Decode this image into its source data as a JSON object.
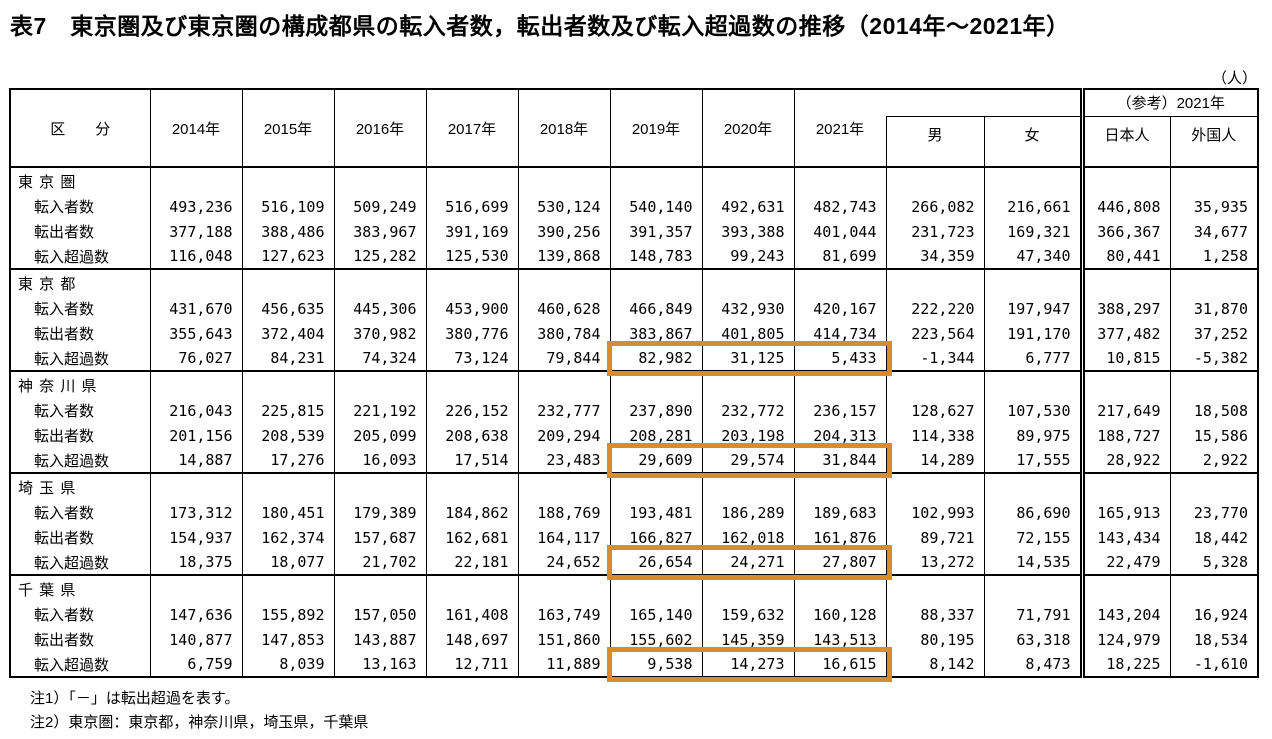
{
  "title": "表7　東京圏及び東京圏の構成都県の転入者数，転出者数及び転入超過数の推移（2014年～2021年）",
  "unit_label": "（人）",
  "highlight_color": "#DE8A2B",
  "table": {
    "col_headers": {
      "category": "区　　分",
      "years": [
        "2014年",
        "2015年",
        "2016年",
        "2017年",
        "2018年",
        "2019年",
        "2020年",
        "2021年"
      ],
      "male": "男",
      "female": "女",
      "reference_group": "（参考）2021年",
      "japanese": "日本人",
      "foreign": "外国人"
    },
    "groups": [
      {
        "name": "東 京 圏",
        "highlight": false,
        "rows": [
          {
            "label": "転入者数",
            "values": [
              "493,236",
              "516,109",
              "509,249",
              "516,699",
              "530,124",
              "540,140",
              "492,631",
              "482,743",
              "266,082",
              "216,661",
              "446,808",
              "35,935"
            ]
          },
          {
            "label": "転出者数",
            "values": [
              "377,188",
              "388,486",
              "383,967",
              "391,169",
              "390,256",
              "391,357",
              "393,388",
              "401,044",
              "231,723",
              "169,321",
              "366,367",
              "34,677"
            ]
          },
          {
            "label": "転入超過数",
            "values": [
              "116,048",
              "127,623",
              "125,282",
              "125,530",
              "139,868",
              "148,783",
              "99,243",
              "81,699",
              "34,359",
              "47,340",
              "80,441",
              "1,258"
            ]
          }
        ]
      },
      {
        "name": "東 京 都",
        "highlight": true,
        "rows": [
          {
            "label": "転入者数",
            "values": [
              "431,670",
              "456,635",
              "445,306",
              "453,900",
              "460,628",
              "466,849",
              "432,930",
              "420,167",
              "222,220",
              "197,947",
              "388,297",
              "31,870"
            ]
          },
          {
            "label": "転出者数",
            "values": [
              "355,643",
              "372,404",
              "370,982",
              "380,776",
              "380,784",
              "383,867",
              "401,805",
              "414,734",
              "223,564",
              "191,170",
              "377,482",
              "37,252"
            ]
          },
          {
            "label": "転入超過数",
            "values": [
              "76,027",
              "84,231",
              "74,324",
              "73,124",
              "79,844",
              "82,982",
              "31,125",
              "5,433",
              "-1,344",
              "6,777",
              "10,815",
              "-5,382"
            ]
          }
        ]
      },
      {
        "name": "神 奈 川 県",
        "highlight": true,
        "rows": [
          {
            "label": "転入者数",
            "values": [
              "216,043",
              "225,815",
              "221,192",
              "226,152",
              "232,777",
              "237,890",
              "232,772",
              "236,157",
              "128,627",
              "107,530",
              "217,649",
              "18,508"
            ]
          },
          {
            "label": "転出者数",
            "values": [
              "201,156",
              "208,539",
              "205,099",
              "208,638",
              "209,294",
              "208,281",
              "203,198",
              "204,313",
              "114,338",
              "89,975",
              "188,727",
              "15,586"
            ]
          },
          {
            "label": "転入超過数",
            "values": [
              "14,887",
              "17,276",
              "16,093",
              "17,514",
              "23,483",
              "29,609",
              "29,574",
              "31,844",
              "14,289",
              "17,555",
              "28,922",
              "2,922"
            ]
          }
        ]
      },
      {
        "name": "埼 玉 県",
        "highlight": true,
        "rows": [
          {
            "label": "転入者数",
            "values": [
              "173,312",
              "180,451",
              "179,389",
              "184,862",
              "188,769",
              "193,481",
              "186,289",
              "189,683",
              "102,993",
              "86,690",
              "165,913",
              "23,770"
            ]
          },
          {
            "label": "転出者数",
            "values": [
              "154,937",
              "162,374",
              "157,687",
              "162,681",
              "164,117",
              "166,827",
              "162,018",
              "161,876",
              "89,721",
              "72,155",
              "143,434",
              "18,442"
            ]
          },
          {
            "label": "転入超過数",
            "values": [
              "18,375",
              "18,077",
              "21,702",
              "22,181",
              "24,652",
              "26,654",
              "24,271",
              "27,807",
              "13,272",
              "14,535",
              "22,479",
              "5,328"
            ]
          }
        ]
      },
      {
        "name": "千 葉 県",
        "highlight": true,
        "rows": [
          {
            "label": "転入者数",
            "values": [
              "147,636",
              "155,892",
              "157,050",
              "161,408",
              "163,749",
              "165,140",
              "159,632",
              "160,128",
              "88,337",
              "71,791",
              "143,204",
              "16,924"
            ]
          },
          {
            "label": "転出者数",
            "values": [
              "140,877",
              "147,853",
              "143,887",
              "148,697",
              "151,860",
              "155,602",
              "145,359",
              "143,513",
              "80,195",
              "63,318",
              "124,979",
              "18,534"
            ]
          },
          {
            "label": "転入超過数",
            "values": [
              "6,759",
              "8,039",
              "13,163",
              "12,711",
              "11,889",
              "9,538",
              "14,273",
              "16,615",
              "8,142",
              "8,473",
              "18,225",
              "-1,610"
            ]
          }
        ]
      }
    ]
  },
  "notes": [
    "注1）「－」は転出超過を表す。",
    "注2）東京圏：東京都，神奈川県，埼玉県，千葉県"
  ]
}
